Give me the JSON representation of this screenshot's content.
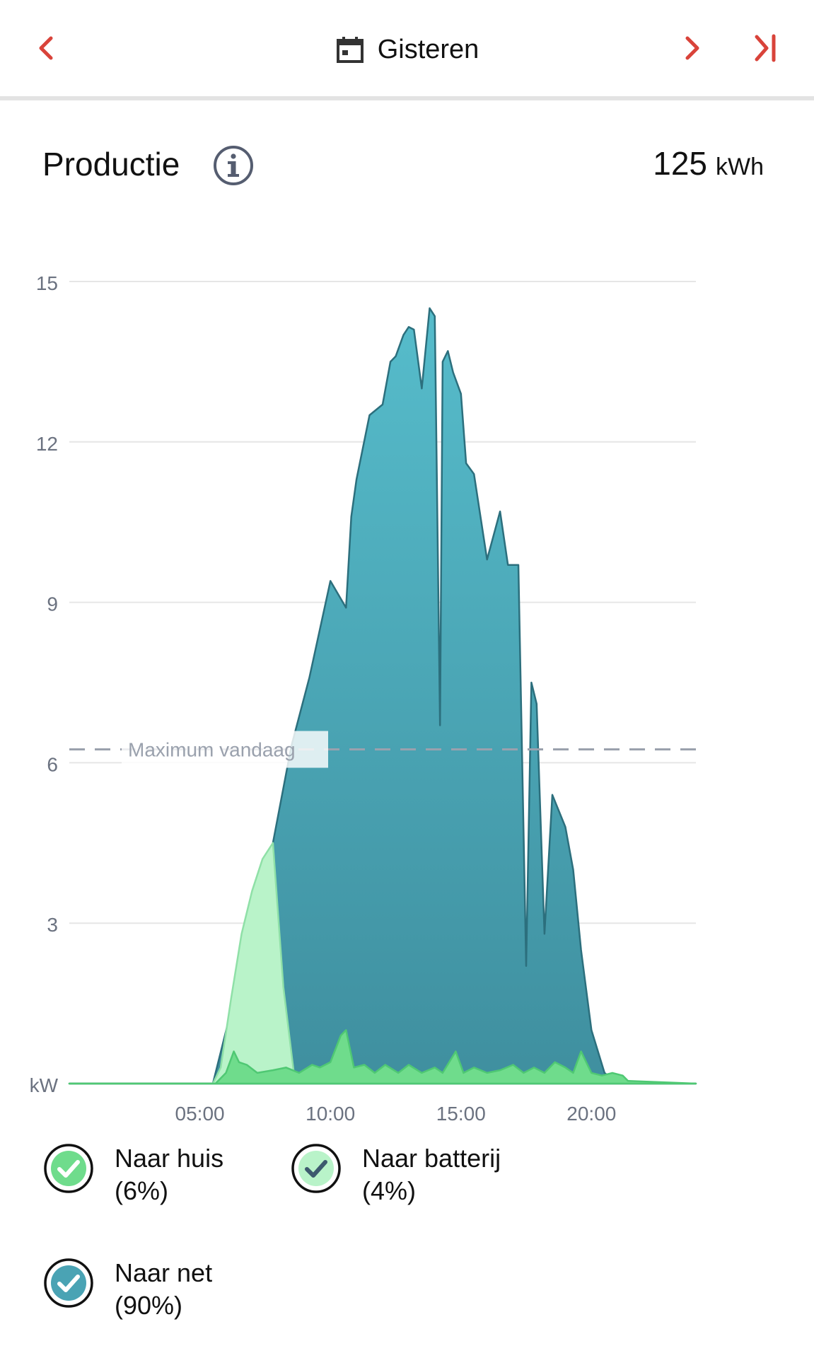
{
  "header": {
    "date_label": "Gisteren",
    "icons": {
      "prev": "chevron-left-icon",
      "calendar": "calendar-icon",
      "next": "chevron-right-icon",
      "last": "skip-to-end-icon"
    },
    "accent_color": "#d9433a"
  },
  "section": {
    "title": "Productie",
    "total_value": "125",
    "total_unit": "kWh"
  },
  "chart_data": {
    "type": "area",
    "xlabel": "",
    "ylabel": "kW",
    "xlim": [
      0,
      24
    ],
    "ylim": [
      0,
      15
    ],
    "y_ticks": [
      15,
      12,
      9,
      6,
      3
    ],
    "x_ticks": [
      {
        "value": 5,
        "label": "05:00"
      },
      {
        "value": 10,
        "label": "10:00"
      },
      {
        "value": 15,
        "label": "15:00"
      },
      {
        "value": 20,
        "label": "20:00"
      }
    ],
    "grid": true,
    "reference_line": {
      "label": "Maximum vandaag",
      "value": 6.25
    },
    "series": [
      {
        "name": "Naar net",
        "color": "#4aa3b4",
        "x": [
          0,
          5.5,
          7.8,
          8.5,
          9.2,
          10.0,
          10.6,
          10.8,
          11.0,
          11.5,
          12.0,
          12.3,
          12.5,
          12.8,
          13.0,
          13.2,
          13.5,
          13.8,
          14.0,
          14.2,
          14.3,
          14.5,
          14.7,
          15.0,
          15.2,
          15.5,
          16.0,
          16.5,
          16.8,
          17.0,
          17.2,
          17.5,
          17.7,
          17.9,
          18.2,
          18.5,
          19.0,
          19.3,
          19.6,
          20.0,
          20.5,
          21.0,
          21.3,
          21.5,
          24
        ],
        "y": [
          0,
          0,
          4.5,
          6.3,
          7.6,
          9.4,
          8.9,
          10.6,
          11.3,
          12.5,
          12.7,
          13.5,
          13.6,
          14.0,
          14.15,
          14.1,
          13.0,
          14.5,
          14.35,
          6.7,
          13.5,
          13.7,
          13.3,
          12.9,
          11.6,
          11.4,
          9.8,
          10.7,
          9.7,
          9.7,
          9.7,
          2.2,
          7.5,
          7.1,
          2.8,
          5.4,
          4.8,
          4.0,
          2.5,
          1.0,
          0.2,
          0,
          0,
          0,
          0
        ]
      },
      {
        "name": "Naar batterij",
        "color": "#b9f3c9",
        "x": [
          0,
          5.5,
          5.8,
          6.2,
          6.6,
          7.0,
          7.4,
          7.8,
          8.2,
          8.6,
          9.0,
          24
        ],
        "y": [
          0,
          0,
          0.3,
          1.6,
          2.8,
          3.6,
          4.2,
          4.5,
          1.8,
          0.2,
          0,
          0
        ]
      },
      {
        "name": "Naar huis",
        "color": "#6fdc8c",
        "x": [
          0,
          5.6,
          6.0,
          6.3,
          6.5,
          6.8,
          7.2,
          7.8,
          8.3,
          8.8,
          9.3,
          9.6,
          10.0,
          10.4,
          10.6,
          10.9,
          11.3,
          11.7,
          12.1,
          12.6,
          13.0,
          13.5,
          14.0,
          14.3,
          14.8,
          15.1,
          15.5,
          16.0,
          16.5,
          17.0,
          17.4,
          17.8,
          18.2,
          18.6,
          19.0,
          19.3,
          19.6,
          20.0,
          20.4,
          20.8,
          21.2,
          21.4,
          24
        ],
        "y": [
          0,
          0,
          0.2,
          0.6,
          0.4,
          0.35,
          0.2,
          0.25,
          0.3,
          0.2,
          0.35,
          0.3,
          0.4,
          0.9,
          1.0,
          0.3,
          0.35,
          0.2,
          0.35,
          0.2,
          0.35,
          0.2,
          0.3,
          0.2,
          0.6,
          0.2,
          0.3,
          0.2,
          0.25,
          0.35,
          0.2,
          0.3,
          0.2,
          0.4,
          0.3,
          0.2,
          0.6,
          0.2,
          0.15,
          0.2,
          0.15,
          0.05,
          0
        ]
      }
    ]
  },
  "legend": [
    {
      "label": "Naar huis",
      "percent": "(6%)",
      "color": "#6fdc8c",
      "icon": "check-circle-icon",
      "check_color": "#ffffff"
    },
    {
      "label": "Naar batterij",
      "percent": "(4%)",
      "color": "#b9f3c9",
      "icon": "check-circle-icon",
      "check_color": "#3d5a6e"
    },
    {
      "label": "Naar net",
      "percent": "(90%)",
      "color": "#4aa3b4",
      "icon": "check-circle-icon",
      "check_color": "#ffffff"
    }
  ]
}
